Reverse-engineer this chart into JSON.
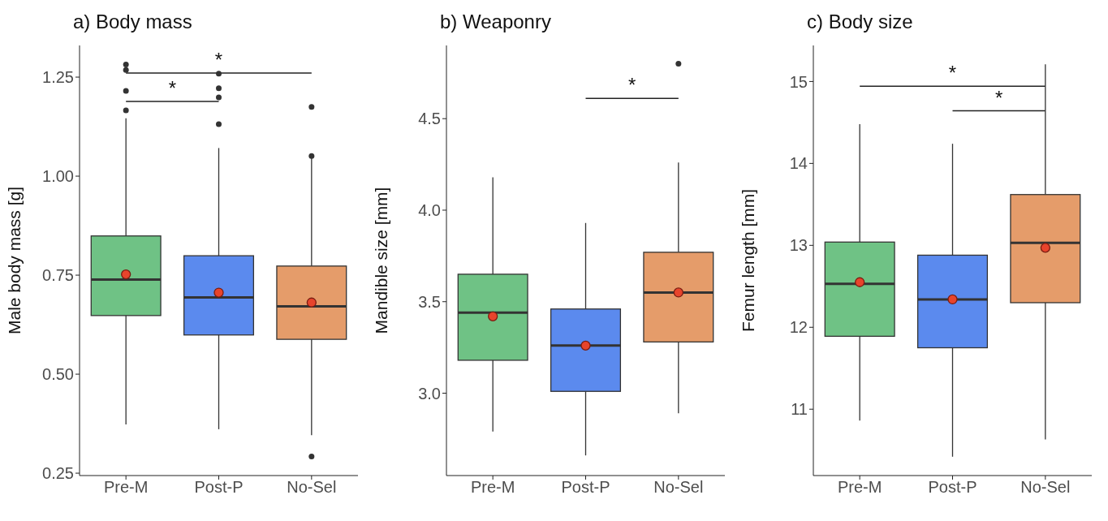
{
  "chart_data": [
    {
      "type": "box",
      "title": "a) Body mass",
      "ylabel": "Male body mass [g]",
      "categories": [
        "Pre-M",
        "Post-P",
        "No-Sel"
      ],
      "colors": [
        "#6fc285",
        "#5b8aee",
        "#e59c6a"
      ],
      "boxes": [
        {
          "low": 0.373,
          "q1": 0.648,
          "median": 0.739,
          "q3": 0.849,
          "high": 1.146,
          "mean": 0.752,
          "outliers": [
            1.282,
            1.268,
            1.215,
            1.166
          ]
        },
        {
          "low": 0.361,
          "q1": 0.599,
          "median": 0.694,
          "q3": 0.799,
          "high": 1.071,
          "mean": 0.706,
          "outliers": [
            1.259,
            1.222,
            1.199,
            1.131
          ]
        },
        {
          "low": 0.346,
          "q1": 0.588,
          "median": 0.671,
          "q3": 0.773,
          "high": 1.045,
          "mean": 0.681,
          "outliers": [
            1.051,
            1.175,
            0.292
          ]
        }
      ],
      "ylim": [
        0.244,
        1.33
      ],
      "yticks": [
        {
          "value": 0.25,
          "label": "0.25"
        },
        {
          "value": 0.5,
          "label": "0.50"
        },
        {
          "value": 0.75,
          "label": "0.75"
        },
        {
          "value": 1.0,
          "label": "1.00"
        },
        {
          "value": 1.25,
          "label": "1.25"
        }
      ],
      "annotations": [
        "*",
        "*"
      ],
      "grid": false,
      "legend": false
    },
    {
      "type": "box",
      "title": "b) Weaponry",
      "ylabel": "Mandible size [mm]",
      "categories": [
        "Pre-M",
        "Post-P",
        "No-Sel"
      ],
      "colors": [
        "#6fc285",
        "#5b8aee",
        "#e59c6a"
      ],
      "boxes": [
        {
          "low": 2.79,
          "q1": 3.18,
          "median": 3.44,
          "q3": 3.65,
          "high": 4.18,
          "mean": 3.42
        },
        {
          "low": 2.66,
          "q1": 3.01,
          "median": 3.26,
          "q3": 3.46,
          "high": 3.93,
          "mean": 3.26
        },
        {
          "low": 2.89,
          "q1": 3.28,
          "median": 3.55,
          "q3": 3.77,
          "high": 4.26,
          "mean": 3.55,
          "outliers": [
            4.8
          ]
        }
      ],
      "ylim": [
        2.55,
        4.9
      ],
      "yticks": [
        {
          "value": 3.0,
          "label": "3.0"
        },
        {
          "value": 3.5,
          "label": "3.5"
        },
        {
          "value": 4.0,
          "label": "4.0"
        },
        {
          "value": 4.5,
          "label": "4.5"
        }
      ],
      "annotations": [
        "*"
      ],
      "grid": false,
      "legend": false
    },
    {
      "type": "box",
      "title": "c) Body size",
      "ylabel": "Femur length [mm]",
      "categories": [
        "Pre-M",
        "Post-P",
        "No-Sel"
      ],
      "colors": [
        "#6fc285",
        "#5b8aee",
        "#e59c6a"
      ],
      "boxes": [
        {
          "low": 10.86,
          "q1": 11.89,
          "median": 12.53,
          "q3": 13.04,
          "high": 14.48,
          "mean": 12.55
        },
        {
          "low": 10.42,
          "q1": 11.75,
          "median": 12.34,
          "q3": 12.88,
          "high": 14.24,
          "mean": 12.34
        },
        {
          "low": 10.63,
          "q1": 12.3,
          "median": 13.03,
          "q3": 13.62,
          "high": 15.21,
          "mean": 12.97
        }
      ],
      "ylim": [
        10.19,
        15.44
      ],
      "yticks": [
        11,
        12,
        13,
        14,
        15
      ],
      "annotations": [
        "*",
        "*"
      ],
      "grid": false,
      "legend": false
    }
  ]
}
